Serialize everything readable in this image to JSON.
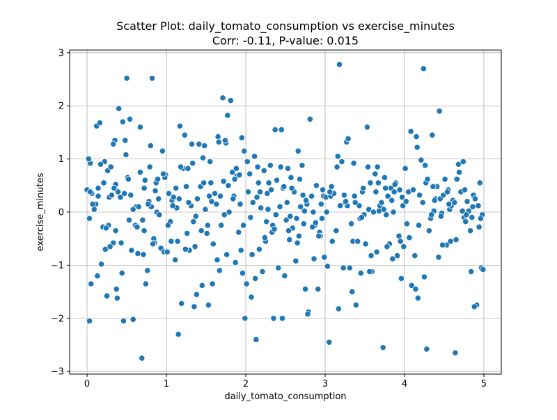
{
  "chart_data": {
    "type": "scatter",
    "title": "Scatter Plot: daily_tomato_consumption vs exercise_minutes",
    "subtitle": "Corr: -0.11, P-value: 0.015",
    "xlabel": "daily_tomato_consumption",
    "ylabel": "exercise_minutes",
    "xlim": [
      -0.22,
      5.22
    ],
    "ylim": [
      -3.05,
      3.05
    ],
    "xticks": [
      0,
      1,
      2,
      3,
      4,
      5
    ],
    "xtick_labels": [
      "0",
      "1",
      "2",
      "3",
      "4",
      "5"
    ],
    "yticks": [
      -3,
      -2,
      -1,
      0,
      1,
      2,
      3
    ],
    "ytick_labels": [
      "−3",
      "−2",
      "−1",
      "0",
      "1",
      "2",
      "3"
    ],
    "grid": true,
    "marker_color": "#1f77b4",
    "marker_edge_color": "#ffffff",
    "x": [
      0.0,
      0.03,
      0.05,
      0.04,
      0.06,
      0.02,
      0.03,
      0.11,
      0.12,
      0.14,
      0.16,
      0.18,
      0.2,
      0.21,
      0.23,
      0.25,
      0.26,
      0.28,
      0.3,
      0.33,
      0.35,
      0.36,
      0.38,
      0.4,
      0.42,
      0.44,
      0.46,
      0.48,
      0.5,
      0.51,
      0.53,
      0.55,
      0.58,
      0.6,
      0.62,
      0.64,
      0.67,
      0.69,
      0.7,
      0.72,
      0.74,
      0.76,
      0.78,
      0.8,
      0.82,
      0.84,
      0.86,
      0.88,
      0.9,
      0.93,
      0.95,
      0.97,
      0.99,
      0.09,
      0.14,
      0.27,
      0.31,
      0.36,
      0.39,
      0.47,
      0.52,
      0.56,
      0.61,
      0.67,
      0.73,
      0.81,
      0.87,
      0.98,
      0.07,
      0.13,
      0.22,
      0.29,
      0.34,
      0.43,
      0.49,
      0.54,
      0.65,
      0.72,
      0.79,
      0.85,
      0.91,
      0.04,
      0.17,
      0.24,
      0.33,
      0.37,
      0.45,
      0.58,
      0.63,
      0.71,
      0.77,
      0.83,
      0.89,
      0.96,
      1.01,
      1.03,
      1.05,
      1.07,
      1.09,
      1.11,
      1.13,
      1.15,
      1.17,
      1.19,
      1.21,
      1.23,
      1.25,
      1.27,
      1.29,
      1.31,
      1.33,
      1.35,
      1.37,
      1.39,
      1.41,
      1.43,
      1.45,
      1.47,
      1.49,
      1.51,
      1.53,
      1.55,
      1.57,
      1.59,
      1.61,
      1.63,
      1.65,
      1.67,
      1.69,
      1.71,
      1.73,
      1.75,
      1.77,
      1.79,
      1.81,
      1.83,
      1.85,
      1.87,
      1.89,
      1.91,
      1.93,
      1.95,
      1.97,
      1.99,
      1.02,
      1.08,
      1.14,
      1.18,
      1.24,
      1.28,
      1.34,
      1.38,
      1.44,
      1.48,
      1.54,
      1.58,
      1.64,
      1.68,
      1.74,
      1.78,
      1.84,
      1.88,
      1.94,
      1.98,
      1.06,
      1.16,
      1.26,
      1.36,
      1.46,
      1.56,
      1.66,
      1.76,
      1.86,
      1.96,
      1.12,
      1.32,
      1.52,
      1.72,
      1.92,
      2.01,
      2.03,
      2.05,
      2.07,
      2.09,
      2.11,
      2.13,
      2.15,
      2.17,
      2.19,
      2.21,
      2.23,
      2.25,
      2.27,
      2.29,
      2.31,
      2.33,
      2.35,
      2.37,
      2.39,
      2.41,
      2.43,
      2.45,
      2.47,
      2.49,
      2.51,
      2.53,
      2.55,
      2.57,
      2.59,
      2.61,
      2.63,
      2.65,
      2.67,
      2.69,
      2.71,
      2.73,
      2.75,
      2.77,
      2.79,
      2.81,
      2.83,
      2.85,
      2.87,
      2.89,
      2.91,
      2.93,
      2.95,
      2.97,
      2.99,
      2.02,
      2.08,
      2.14,
      2.18,
      2.24,
      2.28,
      2.34,
      2.38,
      2.44,
      2.48,
      2.54,
      2.58,
      2.64,
      2.68,
      2.74,
      2.78,
      2.84,
      2.88,
      2.94,
      2.98,
      2.06,
      2.16,
      2.26,
      2.36,
      2.46,
      2.56,
      2.66,
      2.76,
      2.86,
      2.96,
      2.12,
      2.32,
      2.52,
      2.72,
      2.92,
      3.01,
      3.03,
      3.05,
      3.07,
      3.09,
      3.11,
      3.13,
      3.15,
      3.17,
      3.19,
      3.21,
      3.23,
      3.25,
      3.27,
      3.29,
      3.31,
      3.33,
      3.35,
      3.37,
      3.39,
      3.41,
      3.43,
      3.45,
      3.47,
      3.49,
      3.51,
      3.53,
      3.55,
      3.57,
      3.59,
      3.61,
      3.63,
      3.65,
      3.67,
      3.69,
      3.71,
      3.73,
      3.75,
      3.77,
      3.79,
      3.81,
      3.83,
      3.85,
      3.87,
      3.89,
      3.91,
      3.93,
      3.95,
      3.97,
      3.99,
      3.02,
      3.08,
      3.14,
      3.18,
      3.24,
      3.28,
      3.34,
      3.38,
      3.44,
      3.48,
      3.54,
      3.58,
      3.64,
      3.68,
      3.74,
      3.78,
      3.84,
      3.88,
      3.94,
      3.98,
      3.06,
      3.16,
      3.26,
      3.36,
      3.46,
      3.56,
      3.66,
      3.76,
      3.86,
      3.96,
      4.01,
      4.03,
      4.05,
      4.07,
      4.09,
      4.11,
      4.13,
      4.15,
      4.17,
      4.19,
      4.21,
      4.23,
      4.25,
      4.27,
      4.29,
      4.31,
      4.33,
      4.35,
      4.37,
      4.39,
      4.41,
      4.43,
      4.45,
      4.47,
      4.49,
      4.51,
      4.53,
      4.55,
      4.57,
      4.59,
      4.61,
      4.63,
      4.65,
      4.67,
      4.69,
      4.71,
      4.73,
      4.75,
      4.77,
      4.79,
      4.81,
      4.83,
      4.85,
      4.87,
      4.89,
      4.91,
      4.93,
      4.95,
      4.97,
      4.99,
      4.02,
      4.08,
      4.14,
      4.18,
      4.24,
      4.28,
      4.34,
      4.38,
      4.44,
      4.48,
      4.54,
      4.58,
      4.64,
      4.68,
      4.74,
      4.78,
      4.84,
      4.88,
      4.94,
      4.98,
      4.06,
      4.16,
      4.26,
      4.36,
      4.46,
      4.56,
      4.66,
      4.76,
      4.86,
      4.96
    ],
    "y": [
      0.42,
      -2.05,
      -1.35,
      0.92,
      0.35,
      1.0,
      -0.12,
      0.15,
      1.62,
      0.45,
      1.68,
      -0.98,
      -0.28,
      0.55,
      -0.7,
      -1.58,
      0.78,
      0.28,
      0.85,
      -0.58,
      1.35,
      0.52,
      -1.62,
      1.95,
      0.28,
      -1.15,
      -2.05,
      1.35,
      2.52,
      0.65,
      -0.15,
      0.32,
      -2.02,
      -0.25,
      0.1,
      -0.78,
      1.6,
      -2.75,
      -0.15,
      0.45,
      -1.35,
      -1.1,
      0.2,
      1.25,
      2.52,
      -0.5,
      0.4,
      0.0,
      0.25,
      -0.68,
      1.15,
      -0.75,
      0.7,
      0.05,
      0.3,
      -0.25,
      0.32,
      -0.35,
      0.38,
      0.35,
      0.62,
      -0.72,
      -0.25,
      0.75,
      0.6,
      0.1,
      0.55,
      0.65,
      0.15,
      -1.2,
      0.95,
      -0.65,
      0.45,
      -0.58,
      1.08,
      1.75,
      0.1,
      -0.35,
      0.85,
      -0.58,
      -0.05,
      0.38,
      0.9,
      -0.3,
      1.28,
      -1.45,
      1.7,
      0.05,
      -0.28,
      -0.8,
      0.15,
      -0.6,
      0.62,
      0.72,
      -0.75,
      0.35,
      -0.18,
      0.22,
      0.28,
      -0.9,
      0.08,
      -2.3,
      1.62,
      -1.72,
      0.82,
      1.45,
      0.48,
      0.82,
      -0.72,
      0.12,
      0.92,
      -1.78,
      -0.08,
      0.25,
      1.28,
      0.48,
      -1.38,
      0.55,
      0.05,
      -0.4,
      -1.75,
      0.95,
      0.2,
      -0.6,
      0.35,
      0.15,
      1.42,
      -1.1,
      -0.25,
      2.15,
      -0.05,
      1.3,
      1.82,
      0.0,
      2.1,
      0.75,
      0.3,
      -0.95,
      0.68,
      -0.38,
      0.15,
      1.4,
      -0.25,
      -2.0,
      -0.25,
      0.12,
      -0.55,
      0.85,
      -0.7,
      0.18,
      -0.18,
      -1.55,
      -0.35,
      1.25,
      0.3,
      -1.35,
      -0.9,
      0.3,
      1.35,
      0.5,
      0.25,
      0.82,
      -0.72,
      1.15,
      -0.55,
      0.25,
      -0.4,
      -0.65,
      1.02,
      0.55,
      1.32,
      -0.8,
      0.62,
      -1.15,
      0.45,
      1.28,
      -0.25,
      0.58,
      0.7,
      -1.35,
      0.38,
      0.72,
      -1.6,
      0.18,
      1.05,
      -2.4,
      0.85,
      -0.7,
      0.08,
      -1.12,
      0.78,
      -0.55,
      0.35,
      0.55,
      0.88,
      -0.38,
      -2.0,
      1.55,
      0.6,
      -1.05,
      0.1,
      1.55,
      0.45,
      -1.2,
      -0.15,
      0.82,
      -0.52,
      0.65,
      -0.3,
      0.38,
      -0.92,
      -0.58,
      -0.45,
      0.1,
      0.88,
      -0.22,
      -1.45,
      0.15,
      -1.88,
      1.75,
      0.3,
      0.0,
      -0.25,
      0.5,
      -1.45,
      -0.38,
      0.15,
      0.42,
      -0.85,
      0.95,
      -0.8,
      0.28,
      0.38,
      -0.48,
      0.05,
      -0.25,
      -0.05,
      0.85,
      0.48,
      -0.35,
      0.45,
      -0.12,
      0.62,
      0.02,
      -1.92,
      -0.28,
      -0.2,
      -0.45,
      0.3,
      -0.1,
      0.55,
      -0.18,
      -0.32,
      -2.0,
      -0.08,
      1.15,
      0.22,
      -0.88,
      -0.12,
      -1.25,
      0.42,
      0.18,
      0.32,
      -0.45,
      0.28,
      -1.02,
      -2.45,
      0.3,
      -0.55,
      0.35,
      -0.35,
      0.85,
      -1.82,
      0.12,
      0.95,
      -1.05,
      0.18,
      1.32,
      1.38,
      -1.05,
      -0.22,
      -0.55,
      0.3,
      -1.75,
      -0.55,
      0.12,
      -1.15,
      0.38,
      -0.05,
      -0.6,
      1.6,
      0.05,
      0.55,
      -1.12,
      0.0,
      0.72,
      -0.75,
      0.55,
      0.12,
      0.18,
      -2.55,
      0.65,
      -0.05,
      0.3,
      -0.6,
      0.45,
      -0.88,
      0.38,
      0.55,
      -0.82,
      -0.45,
      -0.55,
      0.28,
      -0.65,
      0.0,
      0.48,
      -0.35,
      2.78,
      0.32,
      0.12,
      -1.5,
      0.18,
      -0.12,
      0.45,
      0.85,
      -0.82,
      0.38,
      0.02,
      0.05,
      -0.65,
      0.22,
      0.52,
      0.42,
      0.12,
      0.38,
      1.05,
      0.2,
      0.92,
      -0.1,
      -1.12,
      0.85,
      0.45,
      0.0,
      -1.25,
      0.82,
      -0.22,
      0.38,
      -0.48,
      -1.38,
      0.42,
      -0.82,
      1.42,
      -1.62,
      0.32,
      0.98,
      0.18,
      -1.22,
      0.55,
      0.62,
      -0.35,
      -0.12,
      1.45,
      0.02,
      0.25,
      0.48,
      -0.85,
      0.25,
      -0.02,
      0.32,
      0.62,
      -0.62,
      0.42,
      0.05,
      0.12,
      0.22,
      0.18,
      -0.52,
      0.62,
      0.75,
      0.38,
      0.02,
      -0.1,
      -0.18,
      0.2,
      0.02,
      -0.35,
      -0.1,
      0.32,
      0.25,
      -1.75,
      0.12,
      0.55,
      -1.05,
      -1.08,
      0.2,
      1.52,
      -1.45,
      -0.25,
      2.7,
      -2.58,
      -0.05,
      0.22,
      1.9,
      -0.62,
      0.38,
      -0.55,
      -2.65,
      0.9,
      0.95,
      -0.05,
      -1.12,
      -1.78,
      -0.28,
      -0.05,
      -0.48,
      1.22,
      0.88,
      0.48,
      -0.08,
      0.15,
      0.62,
      0.42,
      0.1,
      -0.12
    ]
  }
}
